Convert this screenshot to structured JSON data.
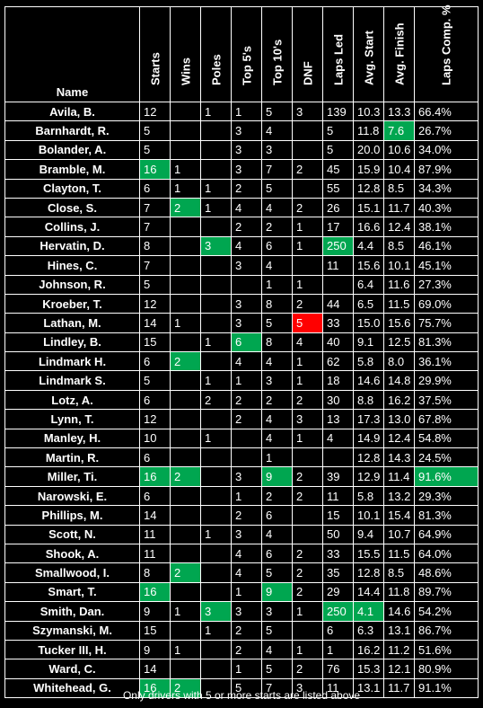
{
  "headers": [
    "Name",
    "Starts",
    "Wins",
    "Poles",
    "Top 5's",
    "Top 10's",
    "DNF",
    "Laps Led",
    "Avg. Start",
    "Avg. Finish",
    "Laps Comp. %"
  ],
  "rows": [
    {
      "cells": [
        "Avila, B.",
        "12",
        "",
        "1",
        "1",
        "5",
        "3",
        "139",
        "10.3",
        "13.3",
        "66.4%"
      ],
      "hl": {}
    },
    {
      "cells": [
        "Barnhardt, R.",
        "5",
        "",
        "",
        "3",
        "4",
        "",
        "5",
        "11.8",
        "7.6",
        "26.7%"
      ],
      "hl": {
        "9": "g"
      }
    },
    {
      "cells": [
        "Bolander, A.",
        "5",
        "",
        "",
        "3",
        "3",
        "",
        "5",
        "20.0",
        "10.6",
        "34.0%"
      ],
      "hl": {}
    },
    {
      "cells": [
        "Bramble, M.",
        "16",
        "1",
        "",
        "3",
        "7",
        "2",
        "45",
        "15.9",
        "10.4",
        "87.9%"
      ],
      "hl": {
        "1": "g"
      }
    },
    {
      "cells": [
        "Clayton, T.",
        "6",
        "1",
        "1",
        "2",
        "5",
        "",
        "55",
        "12.8",
        "8.5",
        "34.3%"
      ],
      "hl": {}
    },
    {
      "cells": [
        "Close, S.",
        "7",
        "2",
        "1",
        "4",
        "4",
        "2",
        "26",
        "15.1",
        "11.7",
        "40.3%"
      ],
      "hl": {
        "2": "g"
      }
    },
    {
      "cells": [
        "Collins, J.",
        "7",
        "",
        "",
        "2",
        "2",
        "1",
        "17",
        "16.6",
        "12.4",
        "38.1%"
      ],
      "hl": {}
    },
    {
      "cells": [
        "Hervatin, D.",
        "8",
        "",
        "3",
        "4",
        "6",
        "1",
        "250",
        "4.4",
        "8.5",
        "46.1%"
      ],
      "hl": {
        "3": "g",
        "7": "g"
      }
    },
    {
      "cells": [
        "Hines, C.",
        "7",
        "",
        "",
        "3",
        "4",
        "",
        "11",
        "15.6",
        "10.1",
        "45.1%"
      ],
      "hl": {}
    },
    {
      "cells": [
        "Johnson, R.",
        "5",
        "",
        "",
        "",
        "1",
        "1",
        "",
        "6.4",
        "11.6",
        "27.3%"
      ],
      "hl": {}
    },
    {
      "cells": [
        "Kroeber, T.",
        "12",
        "",
        "",
        "3",
        "8",
        "2",
        "44",
        "6.5",
        "11.5",
        "69.0%"
      ],
      "hl": {}
    },
    {
      "cells": [
        "Lathan, M.",
        "14",
        "1",
        "",
        "3",
        "5",
        "5",
        "33",
        "15.0",
        "15.6",
        "75.7%"
      ],
      "hl": {
        "6": "r"
      }
    },
    {
      "cells": [
        "Lindley, B.",
        "15",
        "",
        "1",
        "6",
        "8",
        "4",
        "40",
        "9.1",
        "12.5",
        "81.3%"
      ],
      "hl": {
        "4": "g"
      }
    },
    {
      "cells": [
        "Lindmark H.",
        "6",
        "2",
        "",
        "4",
        "4",
        "1",
        "62",
        "5.8",
        "8.0",
        "36.1%"
      ],
      "hl": {
        "2": "g"
      }
    },
    {
      "cells": [
        "Lindmark S.",
        "5",
        "",
        "1",
        "1",
        "3",
        "1",
        "18",
        "14.6",
        "14.8",
        "29.9%"
      ],
      "hl": {}
    },
    {
      "cells": [
        "Lotz, A.",
        "6",
        "",
        "2",
        "2",
        "2",
        "2",
        "30",
        "8.8",
        "16.2",
        "37.5%"
      ],
      "hl": {}
    },
    {
      "cells": [
        "Lynn, T.",
        "12",
        "",
        "",
        "2",
        "4",
        "3",
        "13",
        "17.3",
        "13.0",
        "67.8%"
      ],
      "hl": {}
    },
    {
      "cells": [
        "Manley, H.",
        "10",
        "",
        "1",
        "",
        "4",
        "1",
        "4",
        "14.9",
        "12.4",
        "54.8%"
      ],
      "hl": {}
    },
    {
      "cells": [
        "Martin, R.",
        "6",
        "",
        "",
        "",
        "1",
        "",
        "",
        "12.8",
        "14.3",
        "24.5%"
      ],
      "hl": {}
    },
    {
      "cells": [
        "Miller, Ti.",
        "16",
        "2",
        "",
        "3",
        "9",
        "2",
        "39",
        "12.9",
        "11.4",
        "91.6%"
      ],
      "hl": {
        "1": "g",
        "2": "g",
        "5": "g",
        "10": "g"
      }
    },
    {
      "cells": [
        "Narowski, E.",
        "6",
        "",
        "",
        "1",
        "2",
        "2",
        "11",
        "5.8",
        "13.2",
        "29.3%"
      ],
      "hl": {}
    },
    {
      "cells": [
        "Phillips, M.",
        "14",
        "",
        "",
        "2",
        "6",
        "",
        "15",
        "10.1",
        "15.4",
        "81.3%"
      ],
      "hl": {}
    },
    {
      "cells": [
        "Scott, N.",
        "11",
        "",
        "1",
        "3",
        "4",
        "",
        "50",
        "9.4",
        "10.7",
        "64.9%"
      ],
      "hl": {}
    },
    {
      "cells": [
        "Shook, A.",
        "11",
        "",
        "",
        "4",
        "6",
        "2",
        "33",
        "15.5",
        "11.5",
        "64.0%"
      ],
      "hl": {}
    },
    {
      "cells": [
        "Smallwood, I.",
        "8",
        "2",
        "",
        "4",
        "5",
        "2",
        "35",
        "12.8",
        "8.5",
        "48.6%"
      ],
      "hl": {
        "2": "g"
      }
    },
    {
      "cells": [
        "Smart, T.",
        "16",
        "",
        "",
        "1",
        "9",
        "2",
        "29",
        "14.4",
        "11.8",
        "89.7%"
      ],
      "hl": {
        "1": "g",
        "5": "g"
      }
    },
    {
      "cells": [
        "Smith, Dan.",
        "9",
        "1",
        "3",
        "3",
        "3",
        "1",
        "250",
        "4.1",
        "14.6",
        "54.2%"
      ],
      "hl": {
        "3": "g",
        "7": "g",
        "8": "g"
      }
    },
    {
      "cells": [
        "Szymanski, M.",
        "15",
        "",
        "1",
        "2",
        "5",
        "",
        "6",
        "6.3",
        "13.1",
        "86.7%"
      ],
      "hl": {}
    },
    {
      "cells": [
        "Tucker III, H.",
        "9",
        "1",
        "",
        "2",
        "4",
        "1",
        "1",
        "16.2",
        "11.2",
        "51.6%"
      ],
      "hl": {}
    },
    {
      "cells": [
        "Ward, C.",
        "14",
        "",
        "",
        "1",
        "5",
        "2",
        "76",
        "15.3",
        "12.1",
        "80.9%"
      ],
      "hl": {}
    },
    {
      "cells": [
        "Whitehead, G.",
        "16",
        "2",
        "",
        "5",
        "7",
        "3",
        "11",
        "13.1",
        "11.7",
        "91.1%"
      ],
      "hl": {
        "1": "g",
        "2": "g"
      }
    }
  ],
  "footnote": "Only drivers with 5 or more starts are listed above",
  "colors": {
    "highlight_green": "#00a650",
    "highlight_red": "#ff0000",
    "background": "#000000"
  }
}
